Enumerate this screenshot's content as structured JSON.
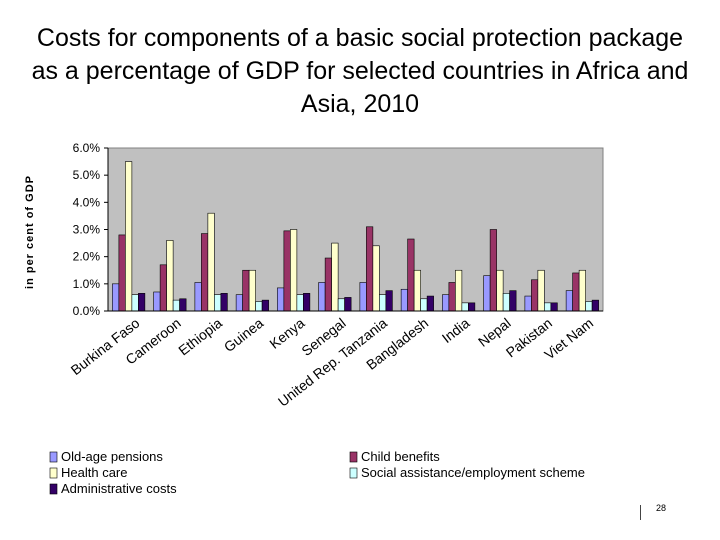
{
  "title": "Costs for components of a basic social protection package as a percentage of GDP for selected countries in Africa and Asia, 2010",
  "page_number": "28",
  "chart_data": {
    "type": "bar",
    "title": "Costs for components of a basic social protection package as a percentage of GDP for selected countries in Africa and Asia, 2010",
    "xlabel": "",
    "ylabel": "in per cent of GDP",
    "ylim": [
      0,
      6
    ],
    "y_ticks": [
      "0.0%",
      "1.0%",
      "2.0%",
      "3.0%",
      "4.0%",
      "5.0%",
      "6.0%"
    ],
    "grid": false,
    "legend_position": "bottom",
    "categories": [
      "Burkina Faso",
      "Cameroon",
      "Ethiopia",
      "Guinea",
      "Kenya",
      "Senegal",
      "United Rep. Tanzania",
      "Bangladesh",
      "India",
      "Nepal",
      "Pakistan",
      "Viet Nam"
    ],
    "series": [
      {
        "name": "Old-age pensions",
        "color": "#9999ff",
        "values": [
          1.0,
          0.7,
          1.05,
          0.6,
          0.85,
          1.05,
          1.05,
          0.8,
          0.6,
          1.3,
          0.55,
          0.75
        ]
      },
      {
        "name": "Child benefits",
        "color": "#993366",
        "values": [
          2.8,
          1.7,
          2.85,
          1.5,
          2.95,
          1.95,
          3.1,
          2.65,
          1.05,
          3.0,
          1.15,
          1.4
        ]
      },
      {
        "name": "Health care",
        "color": "#ffffcc",
        "values": [
          5.5,
          2.6,
          3.6,
          1.5,
          3.0,
          2.5,
          2.4,
          1.5,
          1.5,
          1.5,
          1.5,
          1.5
        ]
      },
      {
        "name": "Social assistance/employment scheme",
        "color": "#ccffff",
        "values": [
          0.6,
          0.4,
          0.6,
          0.35,
          0.6,
          0.45,
          0.6,
          0.45,
          0.3,
          0.65,
          0.3,
          0.35
        ]
      },
      {
        "name": "Administrative costs",
        "color": "#330066",
        "values": [
          0.65,
          0.45,
          0.65,
          0.4,
          0.65,
          0.5,
          0.75,
          0.55,
          0.3,
          0.75,
          0.3,
          0.4
        ]
      }
    ],
    "colors": {
      "plot_background": "#c0c0c0",
      "axis": "#000000"
    }
  }
}
